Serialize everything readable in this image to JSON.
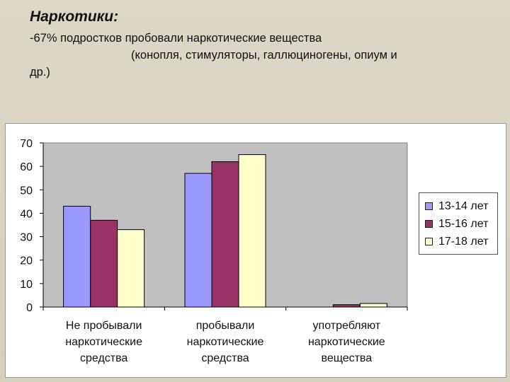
{
  "slide": {
    "heading": "Наркотики:",
    "line1": "-67% подростков пробовали наркотические вещества",
    "line2": "(конопля, стимуляторы, галлюциногены, опиум и",
    "line3": "др.)"
  },
  "chart_data": {
    "type": "bar",
    "categories": [
      [
        "Не пробывали",
        "наркотические",
        "средства"
      ],
      [
        "пробывали",
        "наркотические",
        "средства"
      ],
      [
        "употребляют",
        "наркотические",
        "вещества"
      ]
    ],
    "series": [
      {
        "name": "13-14 лет",
        "color": "#9999ff",
        "values": [
          43,
          57,
          0
        ]
      },
      {
        "name": "15-16 лет",
        "color": "#993366",
        "values": [
          37,
          62,
          1
        ]
      },
      {
        "name": "17-18 лет",
        "color": "#ffffcc",
        "values": [
          33,
          65,
          1.5
        ]
      }
    ],
    "ylim": [
      0,
      70
    ],
    "yticks": [
      0,
      10,
      20,
      30,
      40,
      50,
      60,
      70
    ],
    "grid": false,
    "plot_background": "#c0c0c0",
    "legend_position": "right"
  }
}
